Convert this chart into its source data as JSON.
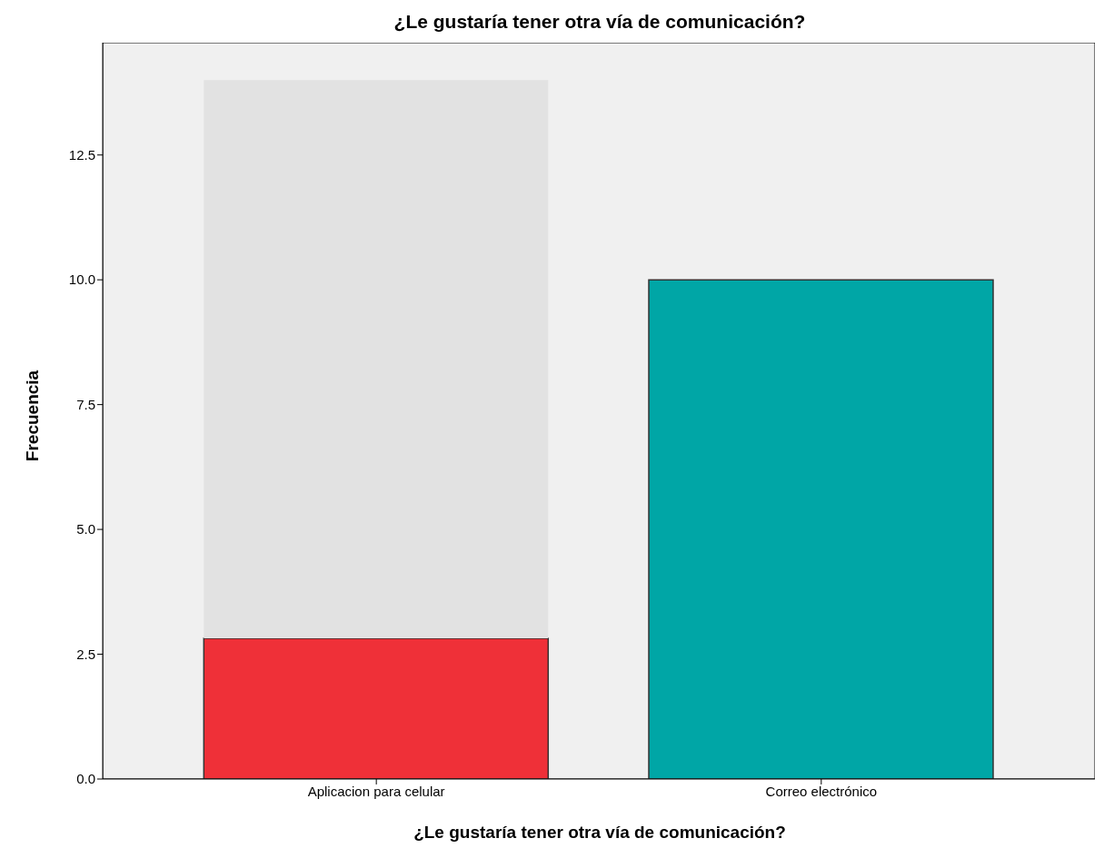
{
  "chart_data": {
    "type": "bar",
    "title": "¿Le gustaría tener otra vía de comunicación?",
    "xlabel": "¿Le gustaría tener otra vía de comunicación?",
    "ylabel": "Frecuencia",
    "categories": [
      "Aplicacion para celular",
      "Correo electrónico"
    ],
    "stacked": true,
    "series": [
      {
        "colors": [
          "#ef3038",
          "#00a6a6"
        ],
        "values": [
          2.82,
          10
        ]
      },
      {
        "color": "#e2e2e2",
        "values": [
          11.18,
          null
        ]
      }
    ],
    "ylim": [
      0,
      14.75
    ],
    "yticks": [
      {
        "value": 0,
        "label": "0.0"
      },
      {
        "value": 2.5,
        "label": "2.5"
      },
      {
        "value": 5,
        "label": "5.0"
      },
      {
        "value": 7.5,
        "label": "7.5"
      },
      {
        "value": 10,
        "label": "10.0"
      },
      {
        "value": 12.5,
        "label": "12.5"
      }
    ],
    "grid": false
  }
}
